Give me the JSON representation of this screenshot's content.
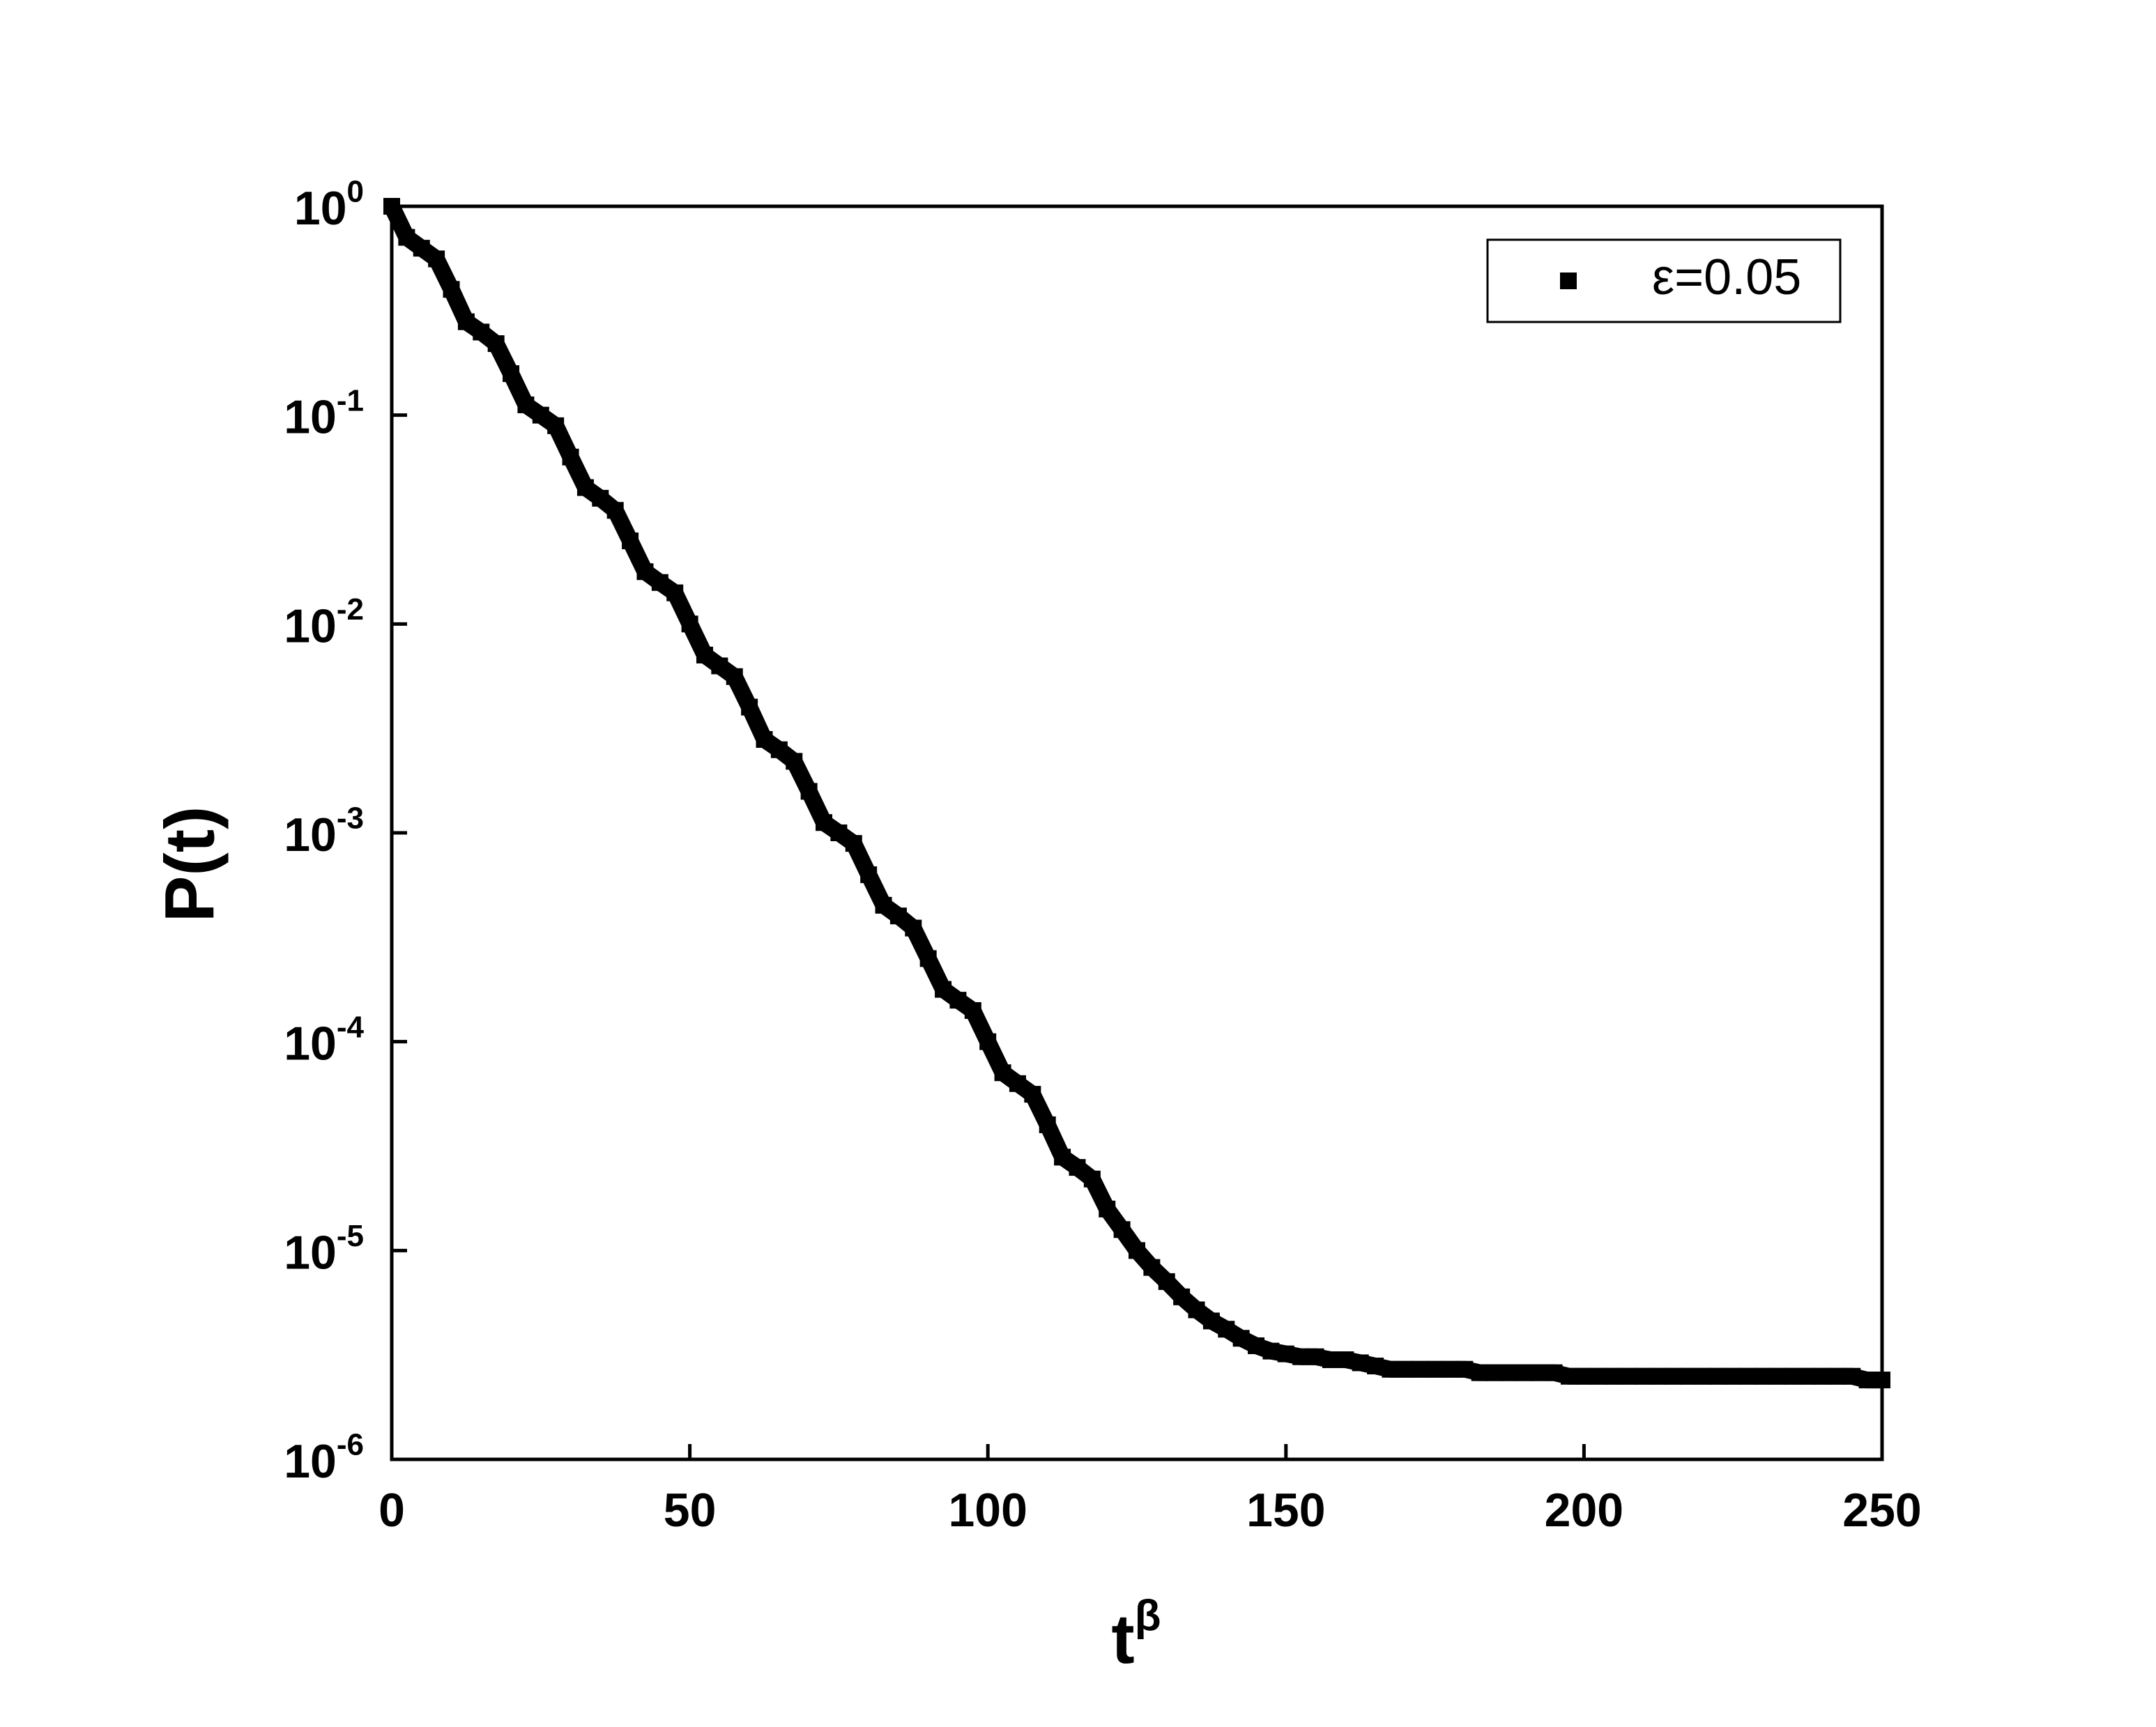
{
  "chart_data": {
    "type": "scatter",
    "xlabel": "t^β",
    "ylabel": "P(t)",
    "log_y": true,
    "xlim": [
      0,
      250
    ],
    "xticks": [
      0,
      50,
      100,
      150,
      200,
      250
    ],
    "ylim": [
      1e-06,
      1
    ],
    "yticks": [
      {
        "value": 1,
        "label": "10^0"
      },
      {
        "value": 0.1,
        "label": "10^-1"
      },
      {
        "value": 0.01,
        "label": "10^-2"
      },
      {
        "value": 0.001,
        "label": "10^-3"
      },
      {
        "value": 0.0001,
        "label": "10^-4"
      },
      {
        "value": 1e-05,
        "label": "10^-5"
      },
      {
        "value": 1e-06,
        "label": "10^-6"
      }
    ],
    "legend": "top-right",
    "series": [
      {
        "name": "ε=0.05",
        "color": "#000000",
        "x": [
          0,
          2.5,
          5,
          7.5,
          10,
          12.5,
          15,
          17.5,
          20,
          22.5,
          25,
          27.5,
          30,
          32.5,
          35,
          37.5,
          40,
          42.5,
          45,
          47.5,
          50,
          52.5,
          55,
          57.5,
          60,
          62.5,
          65,
          67.5,
          70,
          72.5,
          75,
          77.5,
          80,
          82.5,
          85,
          87.5,
          90,
          92.5,
          95,
          97.5,
          100,
          102.5,
          105,
          107.5,
          110,
          112.5,
          115,
          117.5,
          120,
          122.5,
          125,
          127.5,
          130,
          132.5,
          135,
          137.5,
          140,
          142.5,
          145,
          147.5,
          150,
          152.5,
          155,
          157.5,
          160,
          162.5,
          165,
          167.5,
          170,
          172.5,
          175,
          177.5,
          180,
          182.5,
          185,
          187.5,
          190,
          192.5,
          195,
          197.5,
          200,
          202.5,
          205,
          207.5,
          210,
          212.5,
          215,
          217.5,
          220,
          222.5,
          225,
          227.5,
          230,
          232.5,
          235,
          237.5,
          240,
          242.5,
          245,
          247.5,
          250
        ],
        "values": [
          1,
          0.71,
          0.63,
          0.56,
          0.4,
          0.28,
          0.25,
          0.22,
          0.158,
          0.112,
          0.1,
          0.089,
          0.063,
          0.045,
          0.04,
          0.035,
          0.025,
          0.0178,
          0.0158,
          0.0141,
          0.01,
          0.0071,
          0.0063,
          0.0056,
          0.004,
          0.0028,
          0.0025,
          0.0022,
          0.00158,
          0.00112,
          0.001,
          0.00089,
          0.00063,
          0.00045,
          0.0004,
          0.00035,
          0.00025,
          0.000178,
          0.000158,
          0.000141,
          0.0001,
          7.1e-05,
          6.3e-05,
          5.6e-05,
          4e-05,
          2.8e-05,
          2.5e-05,
          2.2e-05,
          1.58e-05,
          1.26e-05,
          1e-05,
          8.3e-06,
          7.1e-06,
          6e-06,
          5.2e-06,
          4.6e-06,
          4.2e-06,
          3.8e-06,
          3.5e-06,
          3.3e-06,
          3.2e-06,
          3.1e-06,
          3.1e-06,
          3e-06,
          3e-06,
          2.9e-06,
          2.8e-06,
          2.7e-06,
          2.7e-06,
          2.7e-06,
          2.7e-06,
          2.7e-06,
          2.7e-06,
          2.6e-06,
          2.6e-06,
          2.6e-06,
          2.6e-06,
          2.6e-06,
          2.6e-06,
          2.5e-06,
          2.5e-06,
          2.5e-06,
          2.5e-06,
          2.5e-06,
          2.5e-06,
          2.5e-06,
          2.5e-06,
          2.5e-06,
          2.5e-06,
          2.5e-06,
          2.5e-06,
          2.5e-06,
          2.5e-06,
          2.5e-06,
          2.5e-06,
          2.5e-06,
          2.5e-06,
          2.5e-06,
          2.5e-06,
          2.4e-06,
          2.4e-06
        ]
      }
    ]
  }
}
